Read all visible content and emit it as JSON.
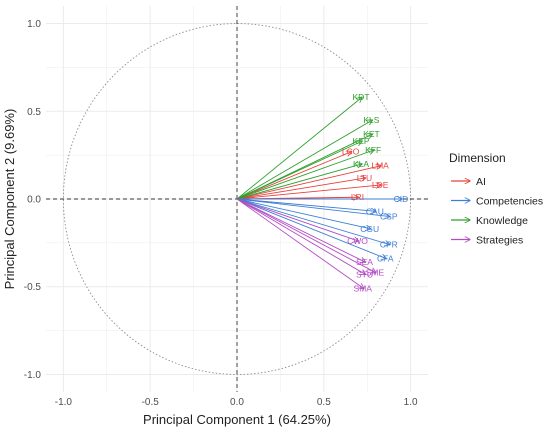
{
  "chart_data": {
    "type": "scatter",
    "subtype": "pca-correlation-circle",
    "xlabel": "Principal Component 1 (64.25%)",
    "ylabel": "Principal Component 2 (9.69%)",
    "xlim": [
      -1.1,
      1.1
    ],
    "ylim": [
      -1.1,
      1.1
    ],
    "x_ticks": [
      -1.0,
      -0.5,
      0.0,
      0.5,
      1.0
    ],
    "y_ticks": [
      -1.0,
      -0.5,
      0.0,
      0.5,
      1.0
    ],
    "x_tick_labels": [
      "-1.0",
      "-0.5",
      "0.0",
      "0.5",
      "1.0"
    ],
    "y_tick_labels": [
      "-1.0",
      "-0.5",
      "0.0",
      "0.5",
      "1.0"
    ],
    "grid": true,
    "unit_circle": true,
    "legend": {
      "title": "Dimension",
      "placement": "right",
      "entries": [
        "AI",
        "Competencies",
        "Knowledge",
        "Strategies"
      ]
    },
    "colors": {
      "AI": "#e8413c",
      "Competencies": "#3d7fd6",
      "Knowledge": "#2ea02c",
      "Strategies": "#b34cc4"
    },
    "series": [
      {
        "name": "AI",
        "points": [
          {
            "label": "LCO",
            "x": 0.66,
            "y": 0.27
          },
          {
            "label": "LMA",
            "x": 0.83,
            "y": 0.19
          },
          {
            "label": "LTU",
            "x": 0.74,
            "y": 0.12
          },
          {
            "label": "LDE",
            "x": 0.83,
            "y": 0.08
          },
          {
            "label": "LRI",
            "x": 0.7,
            "y": 0.01
          }
        ]
      },
      {
        "name": "Competencies",
        "points": [
          {
            "label": "CID",
            "x": 0.95,
            "y": 0.0
          },
          {
            "label": "CAU",
            "x": 0.8,
            "y": -0.07
          },
          {
            "label": "CSP",
            "x": 0.88,
            "y": -0.1
          },
          {
            "label": "CGU",
            "x": 0.77,
            "y": -0.17
          },
          {
            "label": "CPR",
            "x": 0.88,
            "y": -0.26
          },
          {
            "label": "CFA",
            "x": 0.86,
            "y": -0.34
          }
        ]
      },
      {
        "name": "Knowledge",
        "points": [
          {
            "label": "KDT",
            "x": 0.72,
            "y": 0.58
          },
          {
            "label": "KLS",
            "x": 0.78,
            "y": 0.45
          },
          {
            "label": "KET",
            "x": 0.78,
            "y": 0.37
          },
          {
            "label": "KEP",
            "x": 0.72,
            "y": 0.33
          },
          {
            "label": "KFF",
            "x": 0.79,
            "y": 0.28
          },
          {
            "label": "KLA",
            "x": 0.72,
            "y": 0.2
          }
        ]
      },
      {
        "name": "Strategies",
        "points": [
          {
            "label": "CWO",
            "x": 0.7,
            "y": -0.24
          },
          {
            "label": "SEA",
            "x": 0.74,
            "y": -0.36
          },
          {
            "label": "STU",
            "x": 0.74,
            "y": -0.43
          },
          {
            "label": "SME",
            "x": 0.8,
            "y": -0.42
          },
          {
            "label": "SMA",
            "x": 0.73,
            "y": -0.51
          }
        ]
      }
    ]
  }
}
